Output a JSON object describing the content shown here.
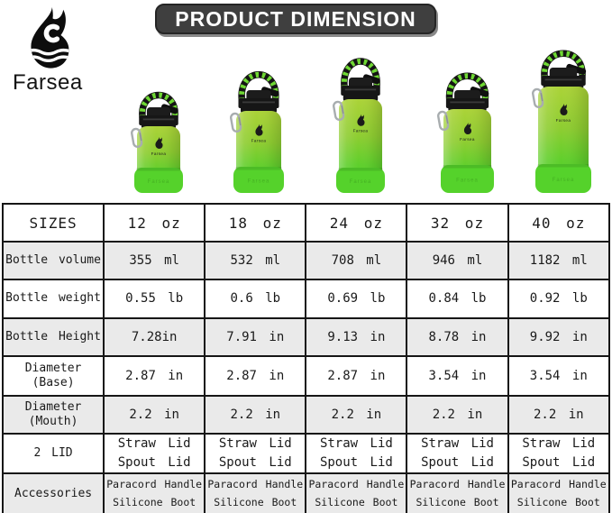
{
  "brand": {
    "name": "Farsea"
  },
  "title": "PRODUCT DIMENSION",
  "bottles": [
    {
      "label": "12 oz"
    },
    {
      "label": "18 oz"
    },
    {
      "label": "24 oz"
    },
    {
      "label": "32 oz"
    },
    {
      "label": "40 oz"
    }
  ],
  "chart_data": {
    "type": "table",
    "title": "PRODUCT DIMENSION",
    "columns": [
      "SIZES",
      "12 oz",
      "18 oz",
      "24 oz",
      "32 oz",
      "40 oz"
    ],
    "rows": [
      {
        "label": "Bottle volume",
        "values": [
          "355 ml",
          "532 ml",
          "708 ml",
          "946 ml",
          "1182 ml"
        ]
      },
      {
        "label": "Bottle weight",
        "values": [
          "0.55 lb",
          "0.6 lb",
          "0.69 lb",
          "0.84 lb",
          "0.92 lb"
        ]
      },
      {
        "label": "Bottle Height",
        "values": [
          "7.28in",
          "7.91 in",
          "9.13 in",
          "8.78 in",
          "9.92 in"
        ]
      },
      {
        "label": "Diameter\n(Base)",
        "values": [
          "2.87 in",
          "2.87 in",
          "2.87 in",
          "3.54 in",
          "3.54 in"
        ]
      },
      {
        "label": "Diameter\n(Mouth)",
        "values": [
          "2.2 in",
          "2.2 in",
          "2.2 in",
          "2.2 in",
          "2.2 in"
        ]
      },
      {
        "label": "2 LID",
        "values": [
          "Straw Lid\nSpout Lid",
          "Straw Lid\nSpout Lid",
          "Straw Lid\nSpout Lid",
          "Straw Lid\nSpout Lid",
          "Straw Lid\nSpout Lid"
        ]
      },
      {
        "label": "Accessories",
        "values": [
          "Paracord Handle\nSilicone Boot",
          "Paracord Handle\nSilicone Boot",
          "Paracord Handle\nSilicone Boot",
          "Paracord Handle\nSilicone Boot",
          "Paracord Handle\nSilicone Boot"
        ]
      }
    ]
  },
  "colors": {
    "badge_bg": "#3f3f3f",
    "badge_text": "#ffffff",
    "logo_black": "#0d0d0d",
    "bottle_green_top": "#abd338",
    "bottle_green_mid": "#8ecd31",
    "bottle_green_low": "#5ecf2c",
    "bottle_green_bottom": "#52cd2b",
    "boot_green": "#55d22b",
    "paracord_green": "#6fd833",
    "cap_black": "#161616",
    "carabiner_silver": "#a8adaf",
    "table_border": "#161616",
    "table_alt_row": "#eaeaea"
  }
}
